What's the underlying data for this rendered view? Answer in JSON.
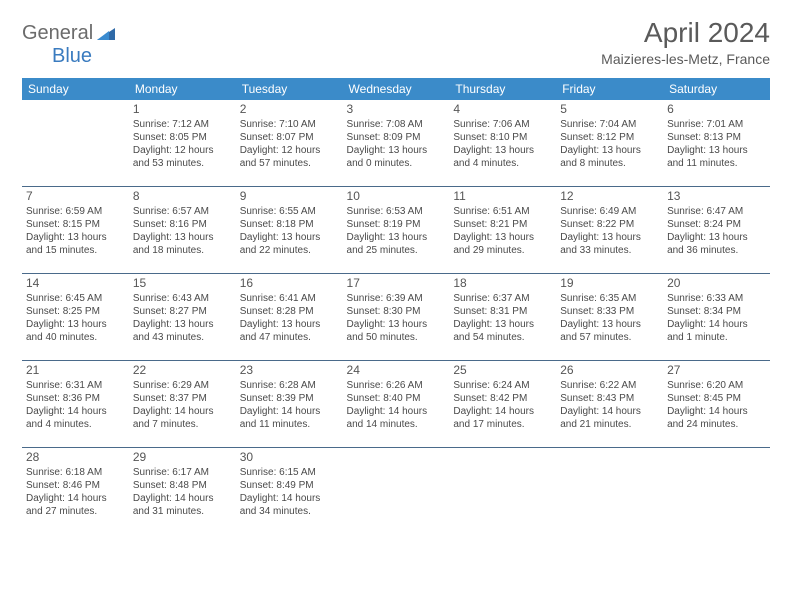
{
  "logo": {
    "text1": "General",
    "text2": "Blue"
  },
  "title": "April 2024",
  "location": "Maizieres-les-Metz, France",
  "colors": {
    "header_bg": "#3b8bc9",
    "header_fg": "#ffffff",
    "rule": "#4a6a8a",
    "logo_gray": "#6b6b6b",
    "logo_blue": "#3a7bbf",
    "text": "#4a4a4a"
  },
  "day_headers": [
    "Sunday",
    "Monday",
    "Tuesday",
    "Wednesday",
    "Thursday",
    "Friday",
    "Saturday"
  ],
  "weeks": [
    [
      null,
      {
        "d": "1",
        "sr": "7:12 AM",
        "ss": "8:05 PM",
        "dl": "12 hours and 53 minutes."
      },
      {
        "d": "2",
        "sr": "7:10 AM",
        "ss": "8:07 PM",
        "dl": "12 hours and 57 minutes."
      },
      {
        "d": "3",
        "sr": "7:08 AM",
        "ss": "8:09 PM",
        "dl": "13 hours and 0 minutes."
      },
      {
        "d": "4",
        "sr": "7:06 AM",
        "ss": "8:10 PM",
        "dl": "13 hours and 4 minutes."
      },
      {
        "d": "5",
        "sr": "7:04 AM",
        "ss": "8:12 PM",
        "dl": "13 hours and 8 minutes."
      },
      {
        "d": "6",
        "sr": "7:01 AM",
        "ss": "8:13 PM",
        "dl": "13 hours and 11 minutes."
      }
    ],
    [
      {
        "d": "7",
        "sr": "6:59 AM",
        "ss": "8:15 PM",
        "dl": "13 hours and 15 minutes."
      },
      {
        "d": "8",
        "sr": "6:57 AM",
        "ss": "8:16 PM",
        "dl": "13 hours and 18 minutes."
      },
      {
        "d": "9",
        "sr": "6:55 AM",
        "ss": "8:18 PM",
        "dl": "13 hours and 22 minutes."
      },
      {
        "d": "10",
        "sr": "6:53 AM",
        "ss": "8:19 PM",
        "dl": "13 hours and 25 minutes."
      },
      {
        "d": "11",
        "sr": "6:51 AM",
        "ss": "8:21 PM",
        "dl": "13 hours and 29 minutes."
      },
      {
        "d": "12",
        "sr": "6:49 AM",
        "ss": "8:22 PM",
        "dl": "13 hours and 33 minutes."
      },
      {
        "d": "13",
        "sr": "6:47 AM",
        "ss": "8:24 PM",
        "dl": "13 hours and 36 minutes."
      }
    ],
    [
      {
        "d": "14",
        "sr": "6:45 AM",
        "ss": "8:25 PM",
        "dl": "13 hours and 40 minutes."
      },
      {
        "d": "15",
        "sr": "6:43 AM",
        "ss": "8:27 PM",
        "dl": "13 hours and 43 minutes."
      },
      {
        "d": "16",
        "sr": "6:41 AM",
        "ss": "8:28 PM",
        "dl": "13 hours and 47 minutes."
      },
      {
        "d": "17",
        "sr": "6:39 AM",
        "ss": "8:30 PM",
        "dl": "13 hours and 50 minutes."
      },
      {
        "d": "18",
        "sr": "6:37 AM",
        "ss": "8:31 PM",
        "dl": "13 hours and 54 minutes."
      },
      {
        "d": "19",
        "sr": "6:35 AM",
        "ss": "8:33 PM",
        "dl": "13 hours and 57 minutes."
      },
      {
        "d": "20",
        "sr": "6:33 AM",
        "ss": "8:34 PM",
        "dl": "14 hours and 1 minute."
      }
    ],
    [
      {
        "d": "21",
        "sr": "6:31 AM",
        "ss": "8:36 PM",
        "dl": "14 hours and 4 minutes."
      },
      {
        "d": "22",
        "sr": "6:29 AM",
        "ss": "8:37 PM",
        "dl": "14 hours and 7 minutes."
      },
      {
        "d": "23",
        "sr": "6:28 AM",
        "ss": "8:39 PM",
        "dl": "14 hours and 11 minutes."
      },
      {
        "d": "24",
        "sr": "6:26 AM",
        "ss": "8:40 PM",
        "dl": "14 hours and 14 minutes."
      },
      {
        "d": "25",
        "sr": "6:24 AM",
        "ss": "8:42 PM",
        "dl": "14 hours and 17 minutes."
      },
      {
        "d": "26",
        "sr": "6:22 AM",
        "ss": "8:43 PM",
        "dl": "14 hours and 21 minutes."
      },
      {
        "d": "27",
        "sr": "6:20 AM",
        "ss": "8:45 PM",
        "dl": "14 hours and 24 minutes."
      }
    ],
    [
      {
        "d": "28",
        "sr": "6:18 AM",
        "ss": "8:46 PM",
        "dl": "14 hours and 27 minutes."
      },
      {
        "d": "29",
        "sr": "6:17 AM",
        "ss": "8:48 PM",
        "dl": "14 hours and 31 minutes."
      },
      {
        "d": "30",
        "sr": "6:15 AM",
        "ss": "8:49 PM",
        "dl": "14 hours and 34 minutes."
      },
      null,
      null,
      null,
      null
    ]
  ],
  "labels": {
    "sunrise": "Sunrise:",
    "sunset": "Sunset:",
    "daylight": "Daylight:"
  }
}
